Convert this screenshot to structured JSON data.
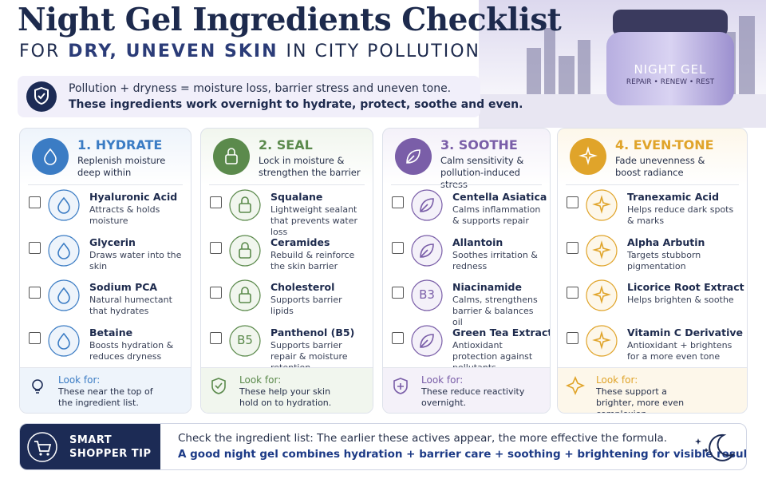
{
  "header": {
    "title": "Night Gel Ingredients Checklist",
    "subtitle": [
      {
        "text": "FOR",
        "bold": false
      },
      {
        "text": "DRY, UNEVEN SKIN",
        "bold": true
      },
      {
        "text": "IN CITY POLLUTION",
        "bold": false
      }
    ]
  },
  "jar": {
    "name": "NIGHT GEL",
    "tagline": "REPAIR • RENEW • REST"
  },
  "intro": {
    "line1": "Pollution + dryness = moisture loss, barrier stress and uneven tone.",
    "line2": "These ingredients work overnight to hydrate, protect, soothe and even."
  },
  "columns": [
    {
      "title": "1. HYDRATE",
      "desc": "Replenish moisture deep within",
      "color": "#3b7cc4",
      "light": "#eef4fb",
      "items": [
        {
          "name": "Hyaluronic Acid",
          "desc": "Attracts & holds moisture"
        },
        {
          "name": "Glycerin",
          "desc": "Draws water into the skin"
        },
        {
          "name": "Sodium PCA",
          "desc": "Natural humectant that hydrates"
        },
        {
          "name": "Betaine",
          "desc": "Boosts hydration & reduces dryness"
        }
      ],
      "look_for": {
        "label": "Look for:",
        "text": "These near the top of the ingredient list."
      }
    },
    {
      "title": "2. SEAL",
      "desc": "Lock in moisture & strengthen the barrier",
      "color": "#5b8a4c",
      "light": "#f1f6ee",
      "items": [
        {
          "name": "Squalane",
          "desc": "Lightweight sealant that prevents water loss"
        },
        {
          "name": "Ceramides",
          "desc": "Rebuild & reinforce the skin barrier"
        },
        {
          "name": "Cholesterol",
          "desc": "Supports barrier lipids"
        },
        {
          "name": "Panthenol (B5)",
          "desc": "Supports barrier repair & moisture retention",
          "badge": "B5"
        }
      ],
      "look_for": {
        "label": "Look for:",
        "text": "These help your skin hold on to hydration."
      }
    },
    {
      "title": "3. SOOTHE",
      "desc": "Calm sensitivity & pollution-induced stress",
      "color": "#7a5ea8",
      "light": "#f4f1f9",
      "items": [
        {
          "name": "Centella Asiatica",
          "desc": "Calms inflammation & supports repair"
        },
        {
          "name": "Allantoin",
          "desc": "Soothes irritation & redness"
        },
        {
          "name": "Niacinamide",
          "desc": "Calms, strengthens barrier & balances oil",
          "badge": "B3"
        },
        {
          "name": "Green Tea Extract",
          "desc": "Antioxidant protection against pollutants"
        }
      ],
      "look_for": {
        "label": "Look for:",
        "text": "These reduce reactivity overnight."
      }
    },
    {
      "title": "4. EVEN-TONE",
      "desc": "Fade unevenness & boost radiance",
      "color": "#e0a42a",
      "light": "#fdf7ea",
      "items": [
        {
          "name": "Tranexamic Acid",
          "desc": "Helps reduce dark spots & marks"
        },
        {
          "name": "Alpha Arbutin",
          "desc": "Targets stubborn pigmentation"
        },
        {
          "name": "Licorice Root Extract",
          "desc": "Helps brighten & soothe"
        },
        {
          "name": "Vitamin C Derivative",
          "desc": "Antioxidant + brightens for a more even tone"
        }
      ],
      "look_for": {
        "label": "Look for:",
        "text": "These support a brighter, more even complexion."
      }
    }
  ],
  "tip": {
    "label": "SMART SHOPPER TIP",
    "line1": "Check the ingredient list: The earlier these actives appear, the more effective the formula.",
    "line2": "A good night gel combines hydration + barrier care + soothing + brightening for visible results."
  }
}
